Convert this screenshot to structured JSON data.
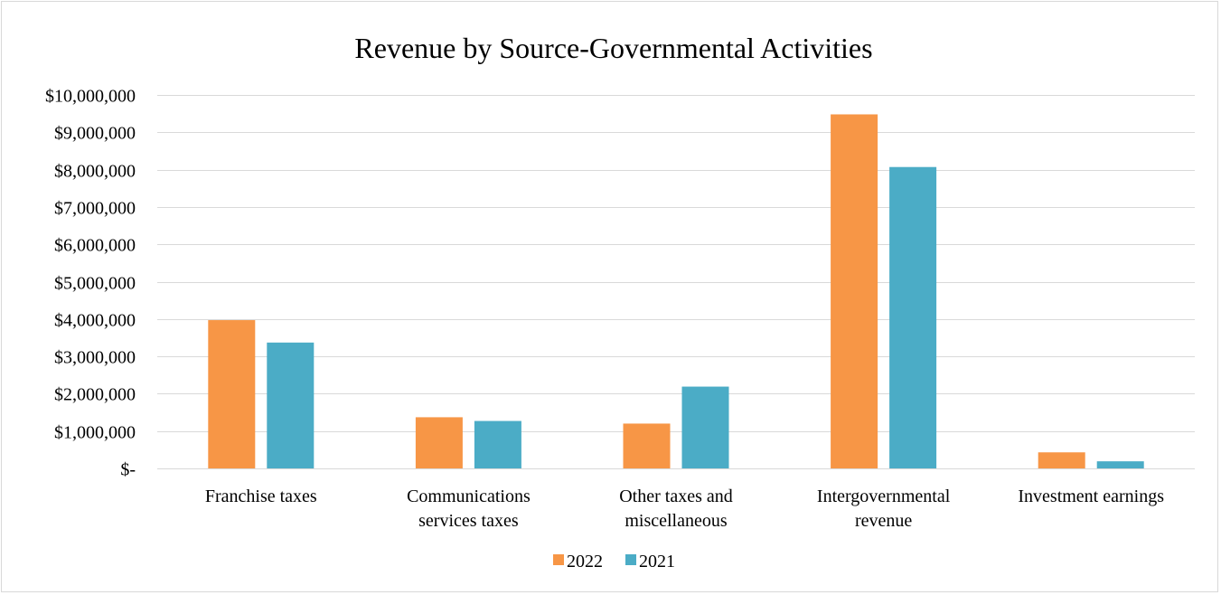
{
  "chart_data": {
    "type": "bar",
    "title": "Revenue by Source-Governmental Activities",
    "xlabel": "",
    "ylabel": "",
    "categories": [
      [
        "Franchise taxes"
      ],
      [
        "Communications",
        "services taxes"
      ],
      [
        "Other taxes and",
        "miscellaneous"
      ],
      [
        "Intergovernmental",
        "revenue"
      ],
      [
        "Investment earnings"
      ]
    ],
    "series": [
      {
        "name": "2022",
        "color": "#F79646",
        "values": [
          3970000,
          1370000,
          1200000,
          9480000,
          430000
        ]
      },
      {
        "name": "2021",
        "color": "#4BACC6",
        "values": [
          3370000,
          1270000,
          2190000,
          8070000,
          190000
        ]
      }
    ],
    "ylim": [
      0,
      10000000
    ],
    "yticks": [
      {
        "value": 0,
        "label": "$-"
      },
      {
        "value": 1000000,
        "label": "$1,000,000"
      },
      {
        "value": 2000000,
        "label": "$2,000,000"
      },
      {
        "value": 3000000,
        "label": "$3,000,000"
      },
      {
        "value": 4000000,
        "label": "$4,000,000"
      },
      {
        "value": 5000000,
        "label": "$5,000,000"
      },
      {
        "value": 6000000,
        "label": "$6,000,000"
      },
      {
        "value": 7000000,
        "label": "$7,000,000"
      },
      {
        "value": 8000000,
        "label": "$8,000,000"
      },
      {
        "value": 9000000,
        "label": "$9,000,000"
      },
      {
        "value": 10000000,
        "label": "$10,000,000"
      }
    ],
    "grid": true,
    "legend": "bottom"
  }
}
